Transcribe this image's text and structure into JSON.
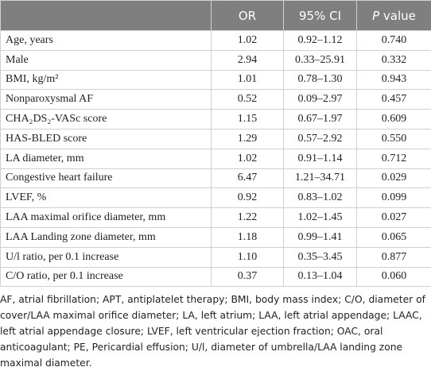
{
  "header": {
    "or": "OR",
    "ci": "95% CI",
    "p_italic": "P",
    "p_rest": "value"
  },
  "table": {
    "rows": [
      [
        "Age, years",
        "1.02",
        "0.92–1.12",
        "0.740"
      ],
      [
        "Male",
        "2.94",
        "0.33–25.91",
        "0.332"
      ],
      [
        "BMI, kg/m²",
        "1.01",
        "0.78–1.30",
        "0.943"
      ],
      [
        "Nonparoxysmal AF",
        "0.52",
        "0.09–2.97",
        "0.457"
      ],
      [
        "CHA₂DS₂-VASc score",
        "1.15",
        "0.67–1.97",
        "0.609"
      ],
      [
        "HAS-BLED score",
        "1.29",
        "0.57–2.92",
        "0.550"
      ],
      [
        "LA diameter, mm",
        "1.02",
        "0.91–1.14",
        "0.712"
      ],
      [
        "Congestive heart failure",
        "6.47",
        "1.21–34.71",
        "0.029"
      ],
      [
        "LVEF, %",
        "0.92",
        "0.83–1.02",
        "0.099"
      ],
      [
        "LAA maximal orifice diameter, mm",
        "1.22",
        "1.02–1.45",
        "0.027"
      ],
      [
        "LAA Landing zone diameter, mm",
        "1.18",
        "0.99–1.41",
        "0.065"
      ],
      [
        "U/l ratio, per 0.1 increase",
        "1.10",
        "0.35–3.45",
        "0.877"
      ],
      [
        "C/O ratio, per 0.1 increase",
        "0.37",
        "0.13–1.04",
        "0.060"
      ]
    ]
  },
  "footnote": "AF, atrial fibrillation; APT, antiplatelet therapy; BMI, body mass index; C/O, diameter of cover/LAA maximal orifice diameter; LA, left atrium; LAA, left atrial appendage; LAAC, left atrial appendage closure; LVEF, left ventricular ejection fraction; OAC, oral anticoagulant; PE, Pericardial effusion; U/l, diameter of umbrella/LAA landing zone maximal diameter."
}
